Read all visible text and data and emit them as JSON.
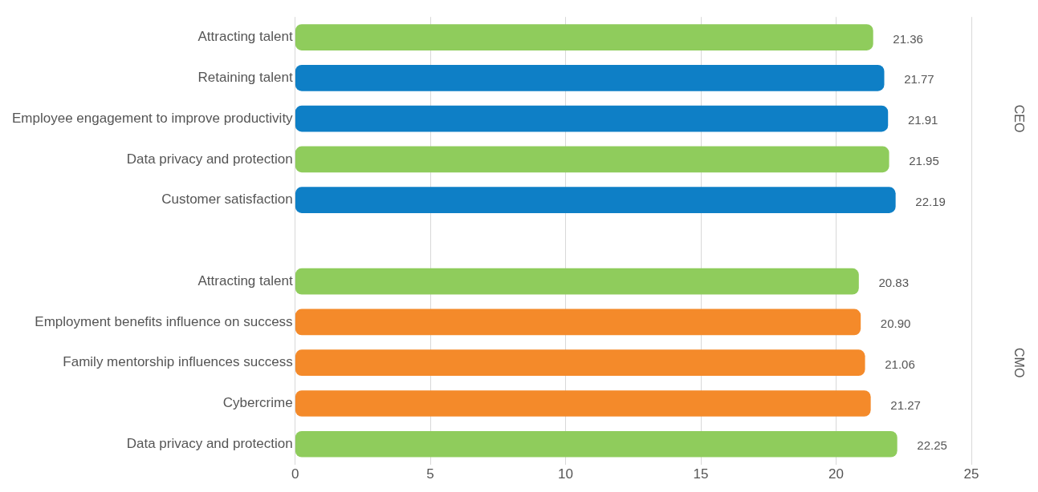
{
  "chart_data": {
    "type": "bar",
    "orientation": "horizontal",
    "categories": [
      "Attracting talent",
      "Retaining talent",
      "Employee engagement to improve productivity",
      "Data privacy and protection",
      "Customer satisfaction",
      null,
      "Attracting talent",
      "Employment benefits influence on success",
      "Family mentorship influences success",
      "Cybercrime",
      "Data privacy and protection"
    ],
    "values": [
      21.36,
      21.77,
      21.91,
      21.95,
      22.19,
      null,
      20.83,
      20.9,
      21.06,
      21.27,
      22.25
    ],
    "value_labels": [
      "21.36",
      "21.77",
      "21.91",
      "21.95",
      "22.19",
      null,
      "20.83",
      "20.90",
      "21.06",
      "21.27",
      "22.25"
    ],
    "colors": [
      "#8fcc5c",
      "#0e7fc6",
      "#0e7fc6",
      "#8fcc5c",
      "#0e7fc6",
      null,
      "#8fcc5c",
      "#f48a2a",
      "#f48a2a",
      "#f48a2a",
      "#8fcc5c"
    ],
    "xlim": [
      0,
      25
    ],
    "xticks": [
      0,
      5,
      10,
      15,
      20,
      25
    ],
    "grid": "x",
    "legend": false,
    "annotations": [
      "CEO",
      "CMO"
    ]
  }
}
